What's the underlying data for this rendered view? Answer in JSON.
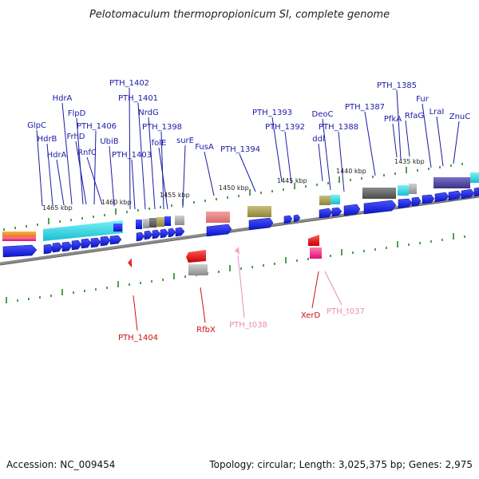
{
  "title": "Pelotomaculum thermopropionicum SI, complete genome",
  "footer": {
    "accession": "Accession: NC_009454",
    "topology": "Topology: circular; Length: 3,025,375 bp; Genes: 2,975"
  },
  "kbp_labels": [
    "1465 kbp",
    "1460 kbp",
    "1455 kbp",
    "1450 kbp",
    "1445 kbp",
    "1440 kbp",
    "1435 kbp"
  ],
  "upper_labels": [
    "GlpC",
    "HdrB",
    "HdrA",
    "HdrA",
    "FlpD",
    "FrhD",
    "PTH_1406",
    "RnfC",
    "UbiB",
    "PTH_1402",
    "PTH_1401",
    "PTH_1403",
    "NrdG",
    "PTH_1398",
    "folE",
    "surE",
    "FusA",
    "PTH_1394",
    "PTH_1393",
    "PTH_1392",
    "ddl",
    "DeoC",
    "PTH_1388",
    "PTH_1387",
    "PTH_1385",
    "PfkA",
    "RfaG",
    "Fur",
    "LraI",
    "ZnuC"
  ],
  "lower_labels": {
    "red": [
      "PTH_1404",
      "RfbX",
      "XerD"
    ],
    "pink": [
      "PTH_t038",
      "PTH_t037"
    ]
  },
  "colors": {
    "forward_gene": "#0a14e6",
    "reverse_gene": "#e01010",
    "trna": "#f3a6c8",
    "cyan_feature": "#2bd6e6",
    "label_blue": "#1a1aa6",
    "label_red": "#cc1111",
    "label_pink": "#e48fb6",
    "tick_green": "#1a7a1a",
    "backbone": "#8a8a8a"
  }
}
